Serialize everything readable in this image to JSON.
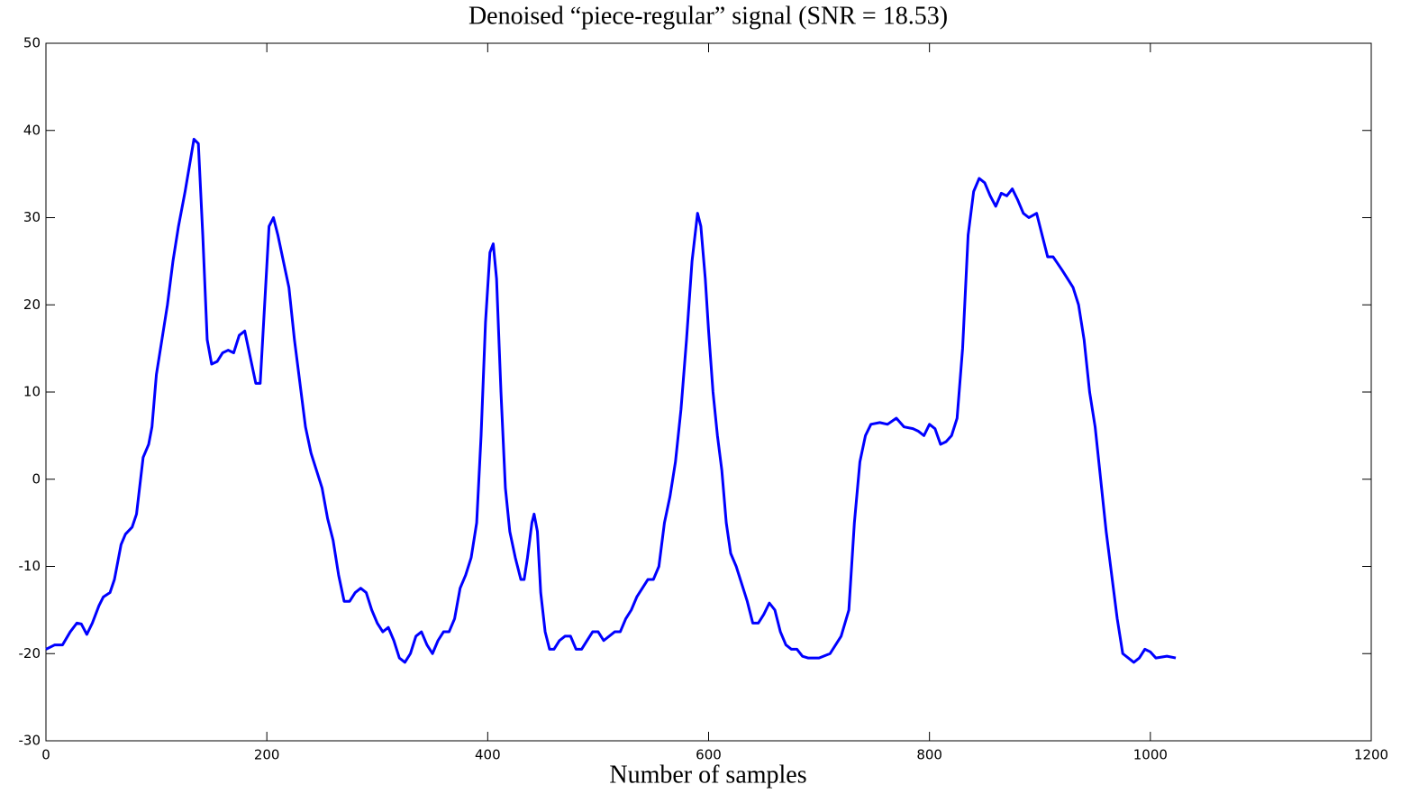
{
  "chart_data": {
    "type": "line",
    "title": "Denoised “piece-regular” signal (SNR = 18.53)",
    "x_label": "Number of samples",
    "xlim": [
      0,
      1200
    ],
    "xticks": [
      0,
      200,
      400,
      600,
      800,
      1000,
      1200
    ],
    "ylim": [
      -30,
      50
    ],
    "yticks": [
      -30,
      -20,
      -10,
      0,
      10,
      20,
      30,
      40,
      50
    ],
    "series": [
      {
        "color": "#0000ff",
        "x": [
          0,
          8,
          15,
          22,
          28,
          32,
          37,
          42,
          48,
          52,
          58,
          62,
          68,
          72,
          78,
          82,
          88,
          93,
          96,
          100,
          105,
          110,
          115,
          120,
          126,
          130,
          134,
          138,
          142,
          146,
          150,
          155,
          160,
          165,
          170,
          175,
          180,
          185,
          190,
          194,
          198,
          202,
          206,
          210,
          215,
          220,
          225,
          230,
          235,
          240,
          245,
          250,
          255,
          260,
          265,
          270,
          275,
          280,
          285,
          290,
          295,
          300,
          305,
          310,
          315,
          320,
          325,
          330,
          335,
          340,
          345,
          350,
          355,
          360,
          365,
          370,
          375,
          380,
          385,
          390,
          394,
          398,
          402,
          405,
          408,
          412,
          416,
          420,
          425,
          430,
          433,
          436,
          440,
          442,
          445,
          448,
          452,
          456,
          460,
          465,
          470,
          475,
          480,
          485,
          490,
          495,
          500,
          505,
          510,
          515,
          520,
          525,
          530,
          535,
          540,
          545,
          550,
          555,
          560,
          565,
          570,
          575,
          580,
          585,
          590,
          593,
          597,
          600,
          604,
          608,
          612,
          616,
          620,
          625,
          630,
          635,
          640,
          645,
          650,
          655,
          660,
          665,
          670,
          675,
          680,
          685,
          690,
          700,
          710,
          720,
          727,
          732,
          737,
          742,
          747,
          755,
          762,
          770,
          777,
          785,
          790,
          795,
          800,
          805,
          810,
          815,
          820,
          825,
          830,
          835,
          840,
          845,
          850,
          855,
          860,
          865,
          870,
          875,
          880,
          885,
          890,
          897,
          902,
          907,
          912,
          920,
          925,
          930,
          935,
          940,
          945,
          950,
          955,
          960,
          965,
          970,
          975,
          980,
          985,
          990,
          995,
          1000,
          1005,
          1015,
          1023
        ],
        "values": [
          -19.5,
          -19,
          -19,
          -17.5,
          -16.5,
          -16.6,
          -17.8,
          -16.5,
          -14.5,
          -13.5,
          -13,
          -11.5,
          -7.5,
          -6.3,
          -5.5,
          -4,
          2.5,
          4,
          6,
          12,
          16,
          20,
          25,
          29,
          33,
          36,
          39,
          38.5,
          28,
          16,
          13.2,
          13.5,
          14.5,
          14.8,
          14.5,
          16.5,
          17,
          14,
          11,
          11,
          20,
          29,
          30,
          28,
          25,
          22,
          16,
          11,
          6,
          3,
          1,
          -1,
          -4.5,
          -7,
          -11,
          -14,
          -14,
          -13,
          -12.5,
          -13,
          -15,
          -16.5,
          -17.5,
          -17,
          -18.5,
          -20.5,
          -21,
          -20,
          -18,
          -17.5,
          -19,
          -20,
          -18.5,
          -17.5,
          -17.5,
          -16,
          -12.5,
          -11,
          -9,
          -5,
          5,
          18,
          26,
          27,
          23,
          10,
          -1,
          -6,
          -9,
          -11.5,
          -11.5,
          -9,
          -5,
          -4,
          -6,
          -13,
          -17.5,
          -19.5,
          -19.5,
          -18.5,
          -18,
          -18,
          -19.5,
          -19.5,
          -18.5,
          -17.5,
          -17.5,
          -18.5,
          -18,
          -17.5,
          -17.5,
          -16,
          -15,
          -13.5,
          -12.5,
          -11.5,
          -11.5,
          -10,
          -5,
          -2,
          2,
          8,
          16,
          25,
          30.5,
          29,
          23,
          17,
          10,
          5,
          1,
          -5,
          -8.5,
          -10,
          -12,
          -14,
          -16.5,
          -16.5,
          -15.5,
          -14.2,
          -15,
          -17.5,
          -19,
          -19.5,
          -19.5,
          -20.3,
          -20.5,
          -20.5,
          -20,
          -18,
          -15,
          -5,
          2,
          5,
          6.3,
          6.5,
          6.3,
          7,
          6,
          5.8,
          5.5,
          5,
          6.3,
          5.8,
          4,
          4.3,
          5,
          7,
          15,
          28,
          33,
          34.5,
          34,
          32.5,
          31.3,
          32.8,
          32.5,
          33.3,
          32,
          30.5,
          30,
          30.5,
          28,
          25.5,
          25.5,
          24,
          23,
          22,
          20,
          16,
          10,
          6,
          0,
          -6,
          -11,
          -16,
          -20,
          -20.5,
          -21,
          -20.5,
          -19.5,
          -19.8,
          -20.5,
          -20.3,
          -20.5
        ]
      }
    ]
  }
}
